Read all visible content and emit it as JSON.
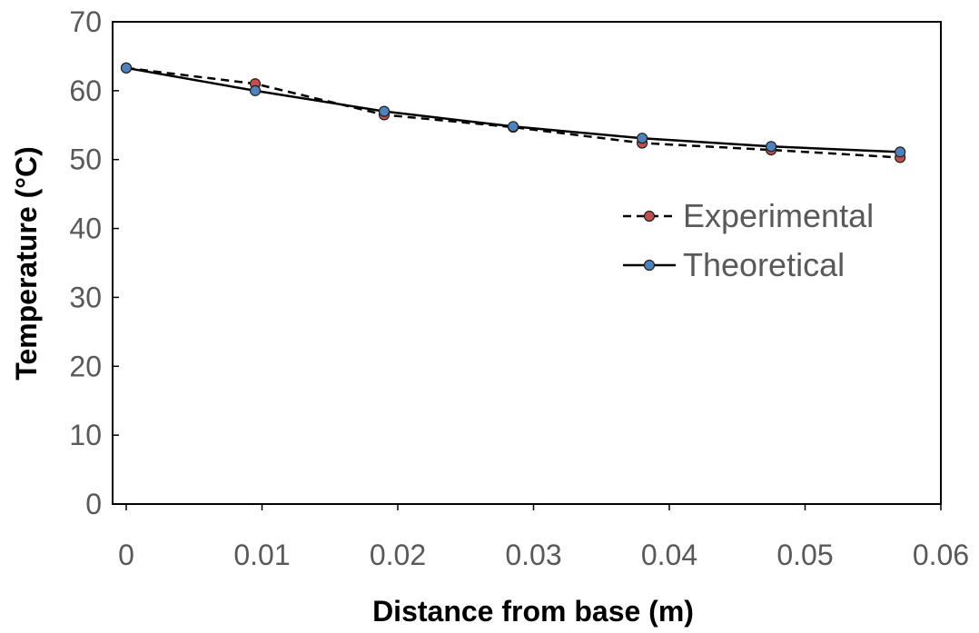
{
  "chart_data": {
    "type": "line",
    "title": "",
    "xlabel": "Distance from base (m)",
    "ylabel": "Temperature (°C)",
    "xlim": [
      0,
      0.06
    ],
    "ylim": [
      0,
      70
    ],
    "xticks": [
      0,
      0.01,
      0.02,
      0.03,
      0.04,
      0.05,
      0.06
    ],
    "xtick_labels": [
      "0",
      "0.01",
      "0.02",
      "0.03",
      "0.04",
      "0.05",
      "0.06"
    ],
    "yticks": [
      0,
      10,
      20,
      30,
      40,
      50,
      60,
      70
    ],
    "ytick_labels": [
      "0",
      "10",
      "20",
      "30",
      "40",
      "50",
      "60",
      "70"
    ],
    "grid": false,
    "legend_position": "right",
    "series": [
      {
        "name": "Experimental",
        "line_style": "dashed",
        "line_color": "#000000",
        "marker_color": "#C0504D",
        "x": [
          0,
          0.0095,
          0.019,
          0.0285,
          0.038,
          0.0475,
          0.057
        ],
        "y": [
          63.3,
          61.0,
          56.5,
          54.7,
          52.4,
          51.4,
          50.3
        ]
      },
      {
        "name": "Theoretical",
        "line_style": "solid",
        "line_color": "#000000",
        "marker_color": "#4F81BD",
        "x": [
          0,
          0.0095,
          0.019,
          0.0285,
          0.038,
          0.0475,
          0.057
        ],
        "y": [
          63.3,
          60.0,
          57.0,
          54.8,
          53.1,
          51.9,
          51.1
        ]
      }
    ]
  }
}
